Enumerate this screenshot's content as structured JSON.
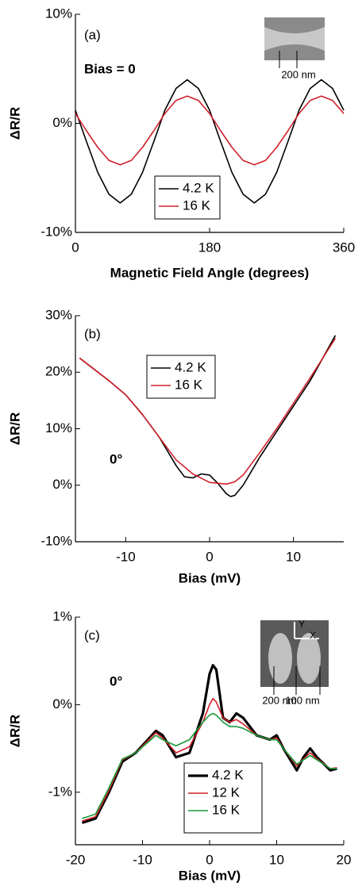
{
  "chart_data": [
    {
      "type": "line",
      "x_label": "Magnetic Field Angle (degrees)",
      "y_label": "ΔR/R",
      "annotations": [
        "(a)",
        "Bias = 0"
      ],
      "inset_labels": [
        "200 nm"
      ],
      "xlim": [
        0,
        360
      ],
      "xticks": [
        0,
        180,
        360
      ],
      "ylim": [
        -10,
        10
      ],
      "yticks": [
        {
          "value": -10,
          "label": "-10%"
        },
        {
          "value": 0,
          "label": "0%"
        },
        {
          "value": 10,
          "label": "10%"
        }
      ],
      "series": [
        {
          "name": "4.2 K",
          "color": "#000000",
          "x": [
            0,
            15,
            30,
            45,
            60,
            75,
            90,
            105,
            120,
            135,
            150,
            165,
            180,
            195,
            210,
            225,
            240,
            255,
            270,
            285,
            300,
            315,
            330,
            345,
            360
          ],
          "values": [
            1.2,
            -1.7,
            -4.5,
            -6.5,
            -7.3,
            -6.5,
            -4.5,
            -1.7,
            1.2,
            3.2,
            4.0,
            3.2,
            1.2,
            -1.7,
            -4.5,
            -6.5,
            -7.3,
            -6.5,
            -4.5,
            -1.7,
            1.2,
            3.2,
            4.0,
            3.2,
            1.2
          ]
        },
        {
          "name": "16 K",
          "color": "#d0202a",
          "x": [
            0,
            15,
            30,
            45,
            60,
            75,
            90,
            105,
            120,
            135,
            150,
            165,
            180,
            195,
            210,
            225,
            240,
            255,
            270,
            285,
            300,
            315,
            330,
            345,
            360
          ],
          "values": [
            0.9,
            -0.7,
            -2.2,
            -3.4,
            -3.8,
            -3.4,
            -2.2,
            -0.7,
            0.9,
            2.1,
            2.5,
            2.1,
            0.9,
            -0.7,
            -2.2,
            -3.4,
            -3.8,
            -3.4,
            -2.2,
            -0.7,
            0.9,
            2.1,
            2.5,
            2.1,
            0.9
          ]
        }
      ]
    },
    {
      "type": "line",
      "x_label": "Bias (mV)",
      "y_label": "ΔR/R",
      "annotations": [
        "(b)",
        "0°"
      ],
      "inset_labels": [],
      "xlim": [
        -16,
        16
      ],
      "xticks": [
        -10,
        0,
        10
      ],
      "ylim": [
        -10,
        30
      ],
      "yticks": [
        {
          "value": -10,
          "label": "-10%"
        },
        {
          "value": 0,
          "label": "0%"
        },
        {
          "value": 10,
          "label": "10%"
        },
        {
          "value": 20,
          "label": "20%"
        },
        {
          "value": 30,
          "label": "30%"
        }
      ],
      "series": [
        {
          "name": "4.2 K",
          "color": "#000000",
          "x": [
            -15.5,
            -12,
            -10,
            -8,
            -6,
            -5,
            -4,
            -3,
            -2,
            -1,
            0,
            1,
            2,
            2.5,
            3,
            4,
            5,
            6,
            8,
            10,
            12,
            15
          ],
          "values": [
            22.5,
            18.5,
            16,
            12.5,
            8.5,
            6,
            3.5,
            1.5,
            1.3,
            2,
            1.8,
            0.3,
            -1.5,
            -2,
            -1.8,
            0,
            2.5,
            5,
            9.5,
            14,
            18.5,
            26.5
          ]
        },
        {
          "name": "16 K",
          "color": "#d0202a",
          "x": [
            -15.5,
            -12,
            -10,
            -8,
            -6,
            -4,
            -2,
            0,
            2,
            3,
            4,
            6,
            8,
            10,
            12,
            15
          ],
          "values": [
            22.5,
            18.5,
            16,
            12.5,
            8.5,
            4.5,
            2,
            0.5,
            0.2,
            0.6,
            1.8,
            5.8,
            10,
            14.5,
            19,
            26
          ]
        }
      ]
    },
    {
      "type": "line",
      "x_label": "Bias (mV)",
      "y_label": "ΔR/R",
      "annotations": [
        "(c)",
        "0°"
      ],
      "inset_labels": [
        "200 nm",
        "100 nm",
        "Y",
        "X"
      ],
      "xlim": [
        -20,
        20
      ],
      "xticks": [
        -20,
        -10,
        0,
        10,
        20
      ],
      "ylim": [
        -1.6,
        1
      ],
      "yticks": [
        {
          "value": -1,
          "label": "-1%"
        },
        {
          "value": 0,
          "label": "0%"
        },
        {
          "value": 1,
          "label": "1%"
        }
      ],
      "series": [
        {
          "name": "4.2 K",
          "color": "#000000",
          "x": [
            -19,
            -17,
            -15,
            -13,
            -11,
            -8,
            -7,
            -5,
            -3,
            -1,
            0,
            0.5,
            1,
            2,
            3,
            4,
            5,
            7,
            9,
            10,
            11,
            13,
            14,
            15,
            16,
            18,
            19
          ],
          "values": [
            -1.35,
            -1.3,
            -1.0,
            -0.65,
            -0.55,
            -0.3,
            -0.35,
            -0.6,
            -0.55,
            -0.1,
            0.35,
            0.45,
            0.4,
            -0.15,
            -0.2,
            -0.1,
            -0.15,
            -0.35,
            -0.4,
            -0.35,
            -0.5,
            -0.75,
            -0.6,
            -0.5,
            -0.6,
            -0.75,
            -0.73
          ]
        },
        {
          "name": "12 K",
          "color": "#d0202a",
          "x": [
            -19,
            -17,
            -15,
            -13,
            -11,
            -8,
            -7,
            -5,
            -3,
            -1,
            0,
            0.5,
            1,
            2,
            3,
            4,
            5,
            7,
            9,
            10,
            11,
            13,
            14,
            15,
            16,
            18,
            19
          ],
          "values": [
            -1.33,
            -1.28,
            -0.98,
            -0.63,
            -0.55,
            -0.32,
            -0.38,
            -0.55,
            -0.48,
            -0.2,
            0.0,
            0.07,
            0.03,
            -0.15,
            -0.2,
            -0.17,
            -0.22,
            -0.35,
            -0.4,
            -0.38,
            -0.5,
            -0.7,
            -0.62,
            -0.55,
            -0.62,
            -0.73,
            -0.72
          ]
        },
        {
          "name": "16 K",
          "color": "#1a9a3a",
          "x": [
            -19,
            -17,
            -15,
            -13,
            -11,
            -8,
            -7,
            -5,
            -3,
            -1,
            0,
            0.5,
            1,
            2,
            3,
            4,
            5,
            7,
            9,
            10,
            11,
            13,
            14,
            15,
            16,
            18,
            19
          ],
          "values": [
            -1.3,
            -1.25,
            -0.95,
            -0.62,
            -0.55,
            -0.35,
            -0.4,
            -0.47,
            -0.4,
            -0.2,
            -0.12,
            -0.1,
            -0.12,
            -0.2,
            -0.25,
            -0.25,
            -0.27,
            -0.35,
            -0.4,
            -0.4,
            -0.5,
            -0.68,
            -0.63,
            -0.58,
            -0.63,
            -0.73,
            -0.73
          ]
        }
      ]
    }
  ]
}
